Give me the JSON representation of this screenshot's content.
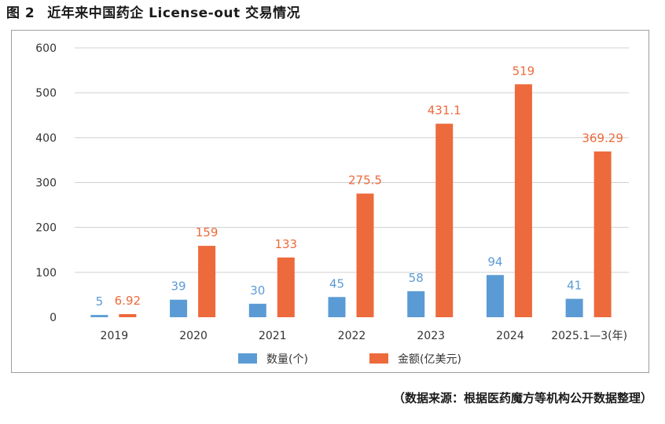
{
  "figure": {
    "number": "图 2",
    "title": "近年来中国药企 License-out 交易情况",
    "source": "（数据来源：根据医药魔方等机构公开数据整理）"
  },
  "colors": {
    "count": "#5B9BD5",
    "amount": "#ED6A3C",
    "grid": "#D0D0D0",
    "axis_text": "#333333"
  },
  "chart_data": {
    "type": "bar",
    "categories": [
      "2019",
      "2020",
      "2021",
      "2022",
      "2023",
      "2024",
      "2025.1—3(年)"
    ],
    "series": [
      {
        "name": "数量(个)",
        "values": [
          5,
          39,
          30,
          45,
          58,
          94,
          41
        ],
        "labels": [
          "5",
          "39",
          "30",
          "45",
          "58",
          "94",
          "41"
        ]
      },
      {
        "name": "金额(亿美元)",
        "values": [
          6.92,
          159,
          133,
          275.5,
          431.1,
          519,
          369.29
        ],
        "labels": [
          "6.92",
          "159",
          "133",
          "275.5",
          "431.1",
          "519",
          "369.29"
        ]
      }
    ],
    "yticks": [
      "0",
      "100",
      "200",
      "300",
      "400",
      "500",
      "600"
    ],
    "ylim": [
      0,
      600
    ],
    "grid": true,
    "legend_position": "bottom"
  }
}
